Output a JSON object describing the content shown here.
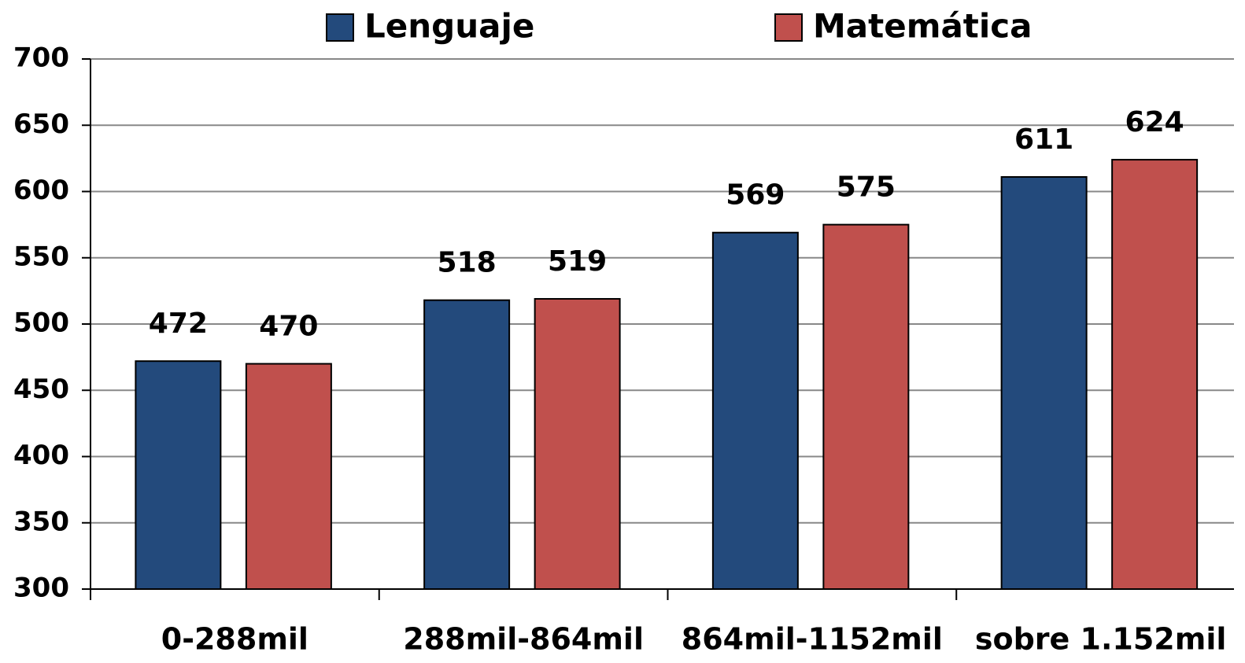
{
  "chart_data": {
    "type": "bar",
    "categories": [
      "0-288mil",
      "288mil-864mil",
      "864mil-1152mil",
      "sobre 1.152mil"
    ],
    "series": [
      {
        "name": "Lenguaje",
        "color": "#234a7c",
        "values": [
          472,
          518,
          569,
          611
        ]
      },
      {
        "name": "Matemática",
        "color": "#c0504d",
        "values": [
          470,
          519,
          575,
          624
        ]
      }
    ],
    "ylim": [
      300,
      700
    ],
    "yticks": [
      300,
      350,
      400,
      450,
      500,
      550,
      600,
      650,
      700
    ],
    "grid": true,
    "legend": "top"
  }
}
